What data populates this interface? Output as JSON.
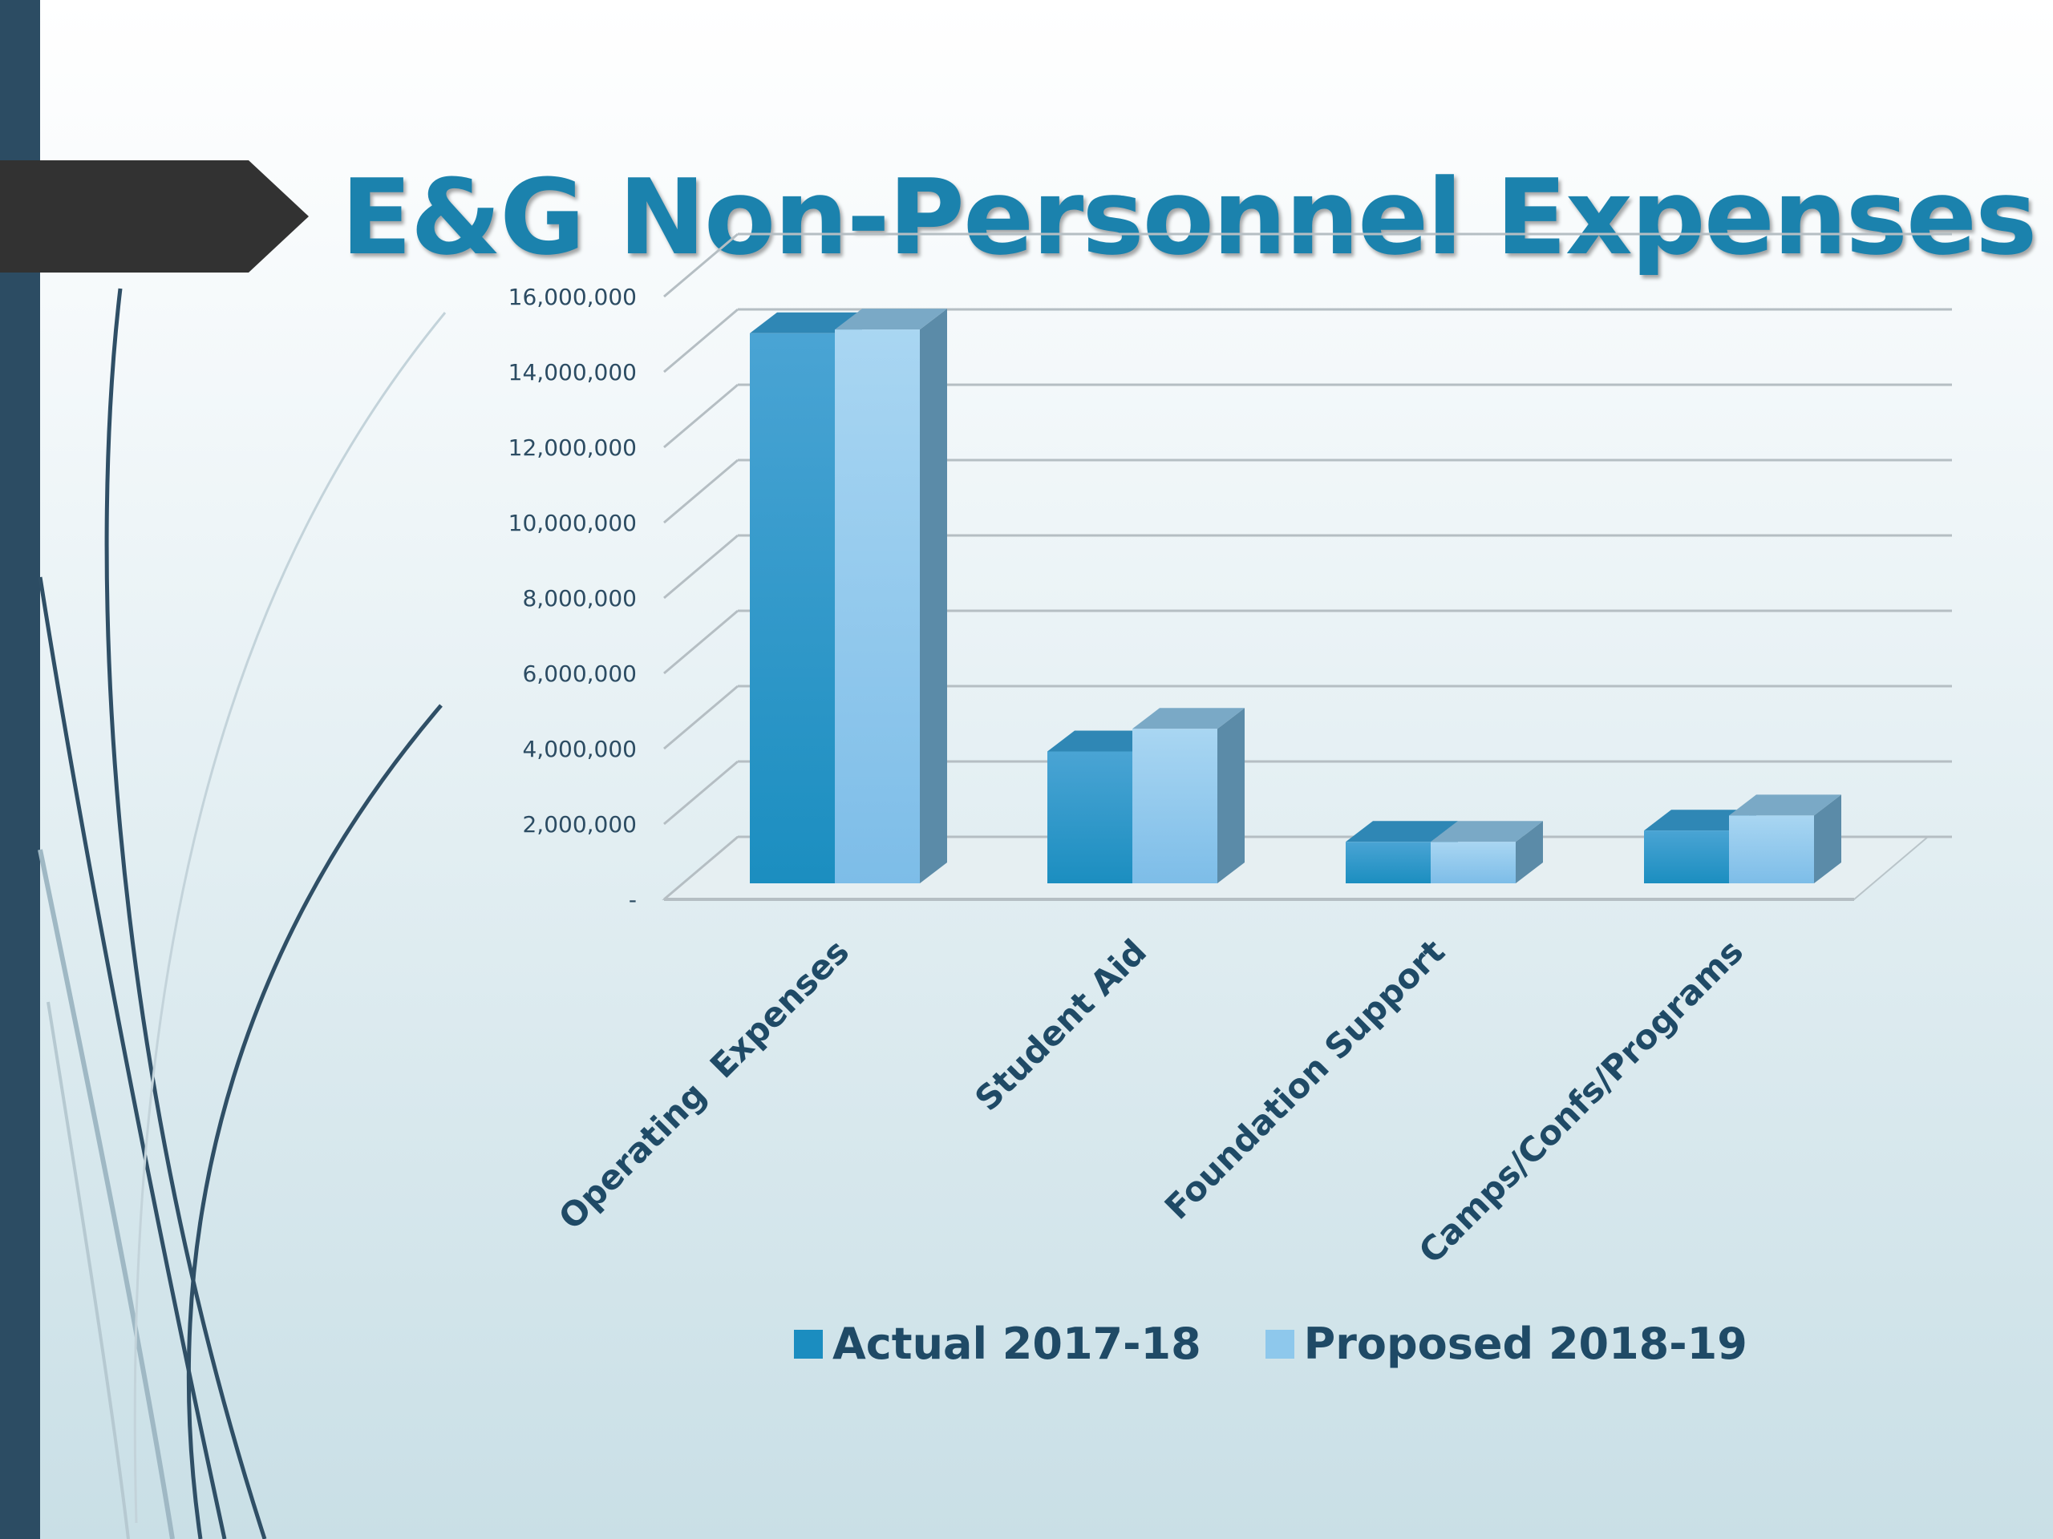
{
  "slide": {
    "title": "E&G Non-Personnel Expenses"
  },
  "chart_data": {
    "type": "bar",
    "title": "",
    "xlabel": "",
    "ylabel": "",
    "categories": [
      "Operating  Expenses",
      "Student Aid",
      "Foundation Support",
      "Camps/Confs/Programs"
    ],
    "series": [
      {
        "name": "Actual 2017-18",
        "values": [
          14600000,
          3500000,
          1100000,
          1400000
        ],
        "color": "#1b8dc0"
      },
      {
        "name": "Proposed 2018-19",
        "values": [
          14700000,
          4100000,
          1100000,
          1800000
        ],
        "color": "#8ec8ec"
      }
    ],
    "ylim": [
      0,
      16000000
    ],
    "yticks": [
      "-",
      "2,000,000",
      "4,000,000",
      "6,000,000",
      "8,000,000",
      "10,000,000",
      "12,000,000",
      "14,000,000",
      "16,000,000"
    ],
    "grid": true,
    "legend": "bottom",
    "style": "3d-clustered-column"
  }
}
